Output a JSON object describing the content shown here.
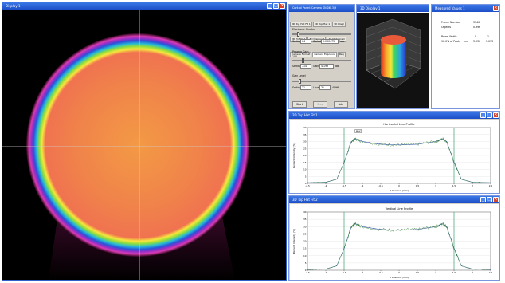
{
  "display_window": {
    "title": "Display 1"
  },
  "control_window": {
    "title": "Control Panel: Camera SN 0613/9",
    "tabs_row1": [
      "3D Top Hat Fit 1",
      "3D Top Hat 1",
      "3D Displ"
    ],
    "tabs_row2": [
      "2D Profile 1",
      "3D Display 1",
      "2C Histogram"
    ],
    "tabs_row3": [
      "Camera Format",
      "Camera Exposure",
      "Reg"
    ],
    "shutter_label": "Electronic Shutter",
    "shutter_setting_label": "Setting",
    "shutter_setting_value": "64",
    "shutter_speed_label": "Speed",
    "shutter_speed_value": "0.000475",
    "shutter_unit": "sec",
    "preamp_label": "Preamp Gain",
    "preamp_value": "100",
    "preamp_setting_label": "Setting",
    "preamp_setting_value": "714",
    "preamp_gain_label": "Gain",
    "preamp_gain_value": "4.193",
    "preamp_unit": "dB",
    "gain_label": "Gain Level",
    "gain_setting_label": "Setting",
    "gain_setting_value": "31",
    "gain_level_label": "Level",
    "gain_level_value": "31",
    "gain_unit": "4096",
    "buttons": {
      "start": "Start",
      "stop": "Stop",
      "add": "Add"
    }
  },
  "display3d_window": {
    "title": "3D Display 1"
  },
  "measured_window": {
    "title": "Measured Values 1",
    "rows": [
      {
        "label": "Frame Number",
        "value": "3340"
      },
      {
        "label": "Objects",
        "value": "0.996"
      }
    ],
    "beam_label": "Beam Width",
    "beam_cols": [
      "0",
      "1"
    ],
    "beam_row_label": "90.0% of Peak",
    "beam_unit": "mm",
    "beam_values": [
      "3.030",
      "3.033"
    ]
  },
  "hfit_window": {
    "title": "3D Top Hat Fit 1"
  },
  "vfit_window": {
    "title": "3D Top Hat Fit 2"
  },
  "icons": {
    "minimize": "minimize-icon",
    "maximize": "maximize-icon",
    "close": "close-icon"
  },
  "glyphs": {
    "minimize": "_",
    "maximize": "□",
    "close": "×"
  },
  "colors": {
    "titlebar": "#2457d6",
    "close": "#d8452c",
    "profile_green": "#2e7d32",
    "fit_blue": "#1a3fa8",
    "bound_marker": "#3aa36a"
  },
  "chart_data": [
    {
      "type": "line",
      "title": "Horizontal Line Profile",
      "xlabel": "X Position (mm)",
      "ylabel": "Percent Intensity (%)",
      "xlim": [
        -2.5,
        2.5
      ],
      "ylim": [
        0,
        40
      ],
      "x_ticks": [
        -2.5,
        -2,
        -1.5,
        -1,
        -0.5,
        0,
        0.5,
        1,
        1.5,
        2,
        2.5
      ],
      "y_ticks": [
        0,
        5,
        10,
        15,
        20,
        25,
        30,
        35,
        40
      ],
      "series": [
        {
          "x": [
            -2.5,
            -2.0,
            -1.7,
            -1.5,
            -1.3,
            -1.2,
            -1.0,
            -0.5,
            0,
            0.5,
            1.0,
            1.2,
            1.3,
            1.5,
            1.7,
            2.0,
            2.5
          ],
          "y": [
            0.5,
            0.8,
            3,
            15,
            30,
            32,
            30,
            28,
            27.5,
            28,
            30,
            32,
            30,
            15,
            3,
            0.8,
            0.5
          ]
        }
      ],
      "bounds": [
        -1.5,
        1.5
      ],
      "annotation": "MAX"
    },
    {
      "type": "line",
      "title": "Vertical Line Profile",
      "xlabel": "Y Position (mm)",
      "ylabel": "Percent Intensity (%)",
      "xlim": [
        -2.5,
        2.5
      ],
      "ylim": [
        0,
        40
      ],
      "x_ticks": [
        -2.5,
        -2,
        -1.5,
        -1,
        -0.5,
        0,
        0.5,
        1,
        1.5,
        2,
        2.5
      ],
      "y_ticks": [
        0,
        5,
        10,
        15,
        20,
        25,
        30,
        35,
        40
      ],
      "series": [
        {
          "x": [
            -2.5,
            -2.0,
            -1.7,
            -1.5,
            -1.3,
            -1.2,
            -1.0,
            -0.5,
            0,
            0.5,
            1.0,
            1.2,
            1.3,
            1.5,
            1.7,
            2.0,
            2.5
          ],
          "y": [
            0.5,
            0.8,
            3,
            15,
            30,
            32,
            30,
            28,
            27.5,
            28,
            30,
            32,
            30,
            15,
            3,
            0.8,
            0.5
          ]
        }
      ],
      "bounds": [
        -1.5,
        1.5
      ]
    }
  ]
}
